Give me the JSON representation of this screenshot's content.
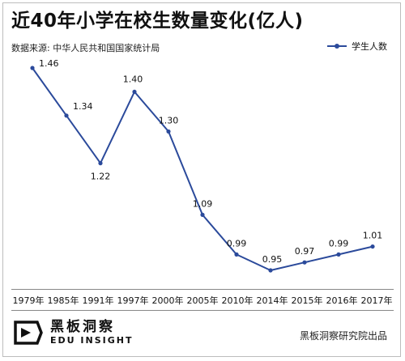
{
  "title": "近40年小学在校生数量变化(亿人)",
  "source": "数据来源: 中华人民共和国国家统计局",
  "legend_label": "学生人数",
  "brand": {
    "name": "黑板洞察",
    "english": "EDU INSIGHT"
  },
  "credit": "黑板洞察研究院出品",
  "colors": {
    "line": "#2b4a9b",
    "text": "#111111",
    "background": "#ffffff"
  },
  "chart_data": {
    "type": "line",
    "title": "近40年小学在校生数量变化(亿人)",
    "categories": [
      "1979年",
      "1985年",
      "1991年",
      "1997年",
      "2000年",
      "2005年",
      "2010年",
      "2014年",
      "2015年",
      "2016年",
      "2017年"
    ],
    "series": [
      {
        "name": "学生人数",
        "values": [
          1.46,
          1.34,
          1.22,
          1.4,
          1.3,
          1.09,
          0.99,
          0.95,
          0.97,
          0.99,
          1.01
        ]
      }
    ],
    "value_labels": [
      "1.46",
      "1.34",
      "1.22",
      "1.40",
      "1.30",
      "1.09",
      "0.99",
      "0.95",
      "0.97",
      "0.99",
      "1.01"
    ],
    "ylim": [
      0.9,
      1.5
    ],
    "grid": false,
    "legend_position": "top-right",
    "xlabel": "",
    "ylabel": ""
  }
}
